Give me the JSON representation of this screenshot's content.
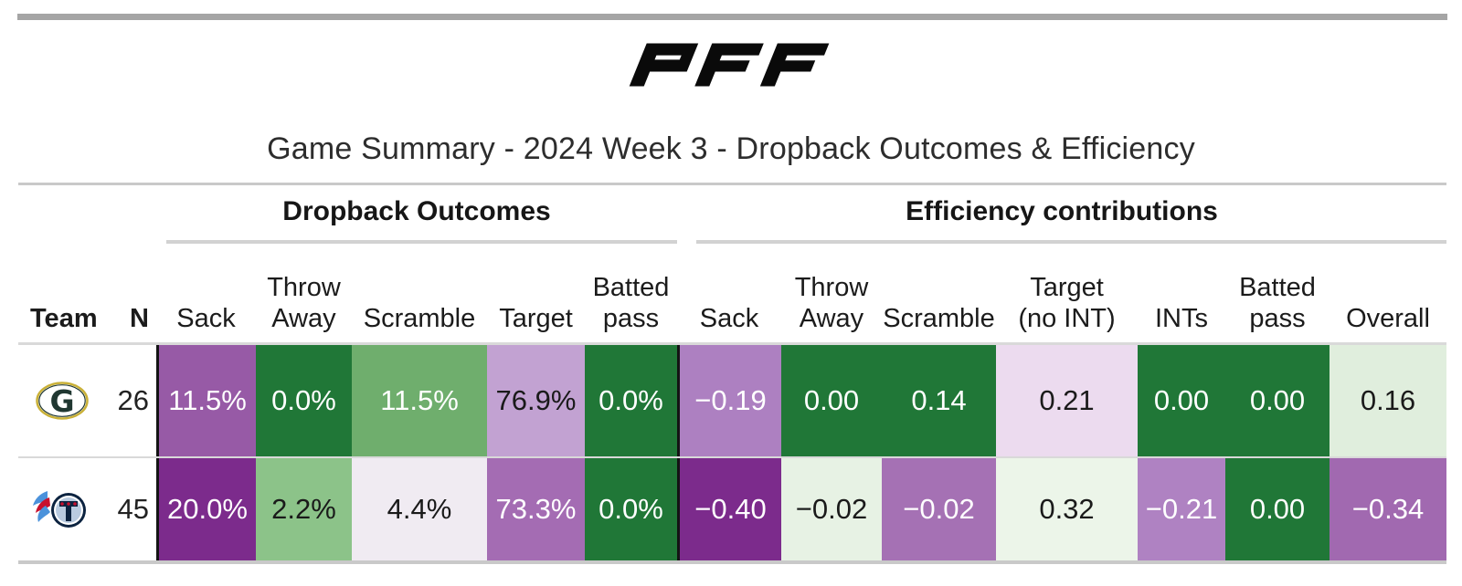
{
  "page": {
    "logo": "PFF",
    "title": "Game Summary - 2024 Week 3 - Dropback Outcomes & Efficiency"
  },
  "table": {
    "groups": [
      {
        "label": "Dropback Outcomes"
      },
      {
        "label": "Efficiency contributions"
      }
    ],
    "columns": [
      {
        "key": "team",
        "label": "Team"
      },
      {
        "key": "n",
        "label": "N"
      },
      {
        "key": "do-sack",
        "label": "Sack"
      },
      {
        "key": "do-throw-away",
        "label": "Throw\nAway"
      },
      {
        "key": "do-scramble",
        "label": "Scramble"
      },
      {
        "key": "do-target",
        "label": "Target"
      },
      {
        "key": "do-batted-pass",
        "label": "Batted\npass"
      },
      {
        "key": "ec-sack",
        "label": "Sack"
      },
      {
        "key": "ec-throw-away",
        "label": "Throw\nAway"
      },
      {
        "key": "ec-scramble",
        "label": "Scramble"
      },
      {
        "key": "ec-target-no-int",
        "label": "Target\n(no INT)"
      },
      {
        "key": "ec-ints",
        "label": "INTs"
      },
      {
        "key": "ec-batted-pass",
        "label": "Batted\npass"
      },
      {
        "key": "ec-overall",
        "label": "Overall"
      }
    ],
    "rows": [
      {
        "team": "packers",
        "team_name": "Green Bay Packers",
        "n": "26",
        "cells": [
          {
            "v": "11.5%",
            "bg": "#975aa6",
            "fg": "#ffffff"
          },
          {
            "v": "0.0%",
            "bg": "#207737",
            "fg": "#ffffff"
          },
          {
            "v": "11.5%",
            "bg": "#6fae6d",
            "fg": "#ffffff"
          },
          {
            "v": "76.9%",
            "bg": "#c2a2d2",
            "fg": "#1a1a1a"
          },
          {
            "v": "0.0%",
            "bg": "#207737",
            "fg": "#ffffff"
          },
          {
            "v": "−0.19",
            "bg": "#ad80c1",
            "fg": "#ffffff"
          },
          {
            "v": "0.00",
            "bg": "#207737",
            "fg": "#ffffff"
          },
          {
            "v": "0.14",
            "bg": "#207737",
            "fg": "#ffffff"
          },
          {
            "v": "0.21",
            "bg": "#ecdbef",
            "fg": "#1a1a1a"
          },
          {
            "v": "0.00",
            "bg": "#207737",
            "fg": "#ffffff"
          },
          {
            "v": "0.00",
            "bg": "#207737",
            "fg": "#ffffff"
          },
          {
            "v": "0.16",
            "bg": "#e0eedd",
            "fg": "#1a1a1a"
          }
        ]
      },
      {
        "team": "titans",
        "team_name": "Tennessee Titans",
        "n": "45",
        "cells": [
          {
            "v": "20.0%",
            "bg": "#7c2b8c",
            "fg": "#ffffff"
          },
          {
            "v": "2.2%",
            "bg": "#8cc389",
            "fg": "#1a1a1a"
          },
          {
            "v": "4.4%",
            "bg": "#f0ebf2",
            "fg": "#1a1a1a"
          },
          {
            "v": "73.3%",
            "bg": "#a46cb3",
            "fg": "#ffffff"
          },
          {
            "v": "0.0%",
            "bg": "#207737",
            "fg": "#ffffff"
          },
          {
            "v": "−0.40",
            "bg": "#7c2b8c",
            "fg": "#ffffff"
          },
          {
            "v": "−0.02",
            "bg": "#e7f2e4",
            "fg": "#1a1a1a"
          },
          {
            "v": "−0.02",
            "bg": "#a571b4",
            "fg": "#ffffff"
          },
          {
            "v": "0.32",
            "bg": "#ecf5e9",
            "fg": "#1a1a1a"
          },
          {
            "v": "−0.21",
            "bg": "#af82c2",
            "fg": "#ffffff"
          },
          {
            "v": "0.00",
            "bg": "#207737",
            "fg": "#ffffff"
          },
          {
            "v": "−0.34",
            "bg": "#a169b0",
            "fg": "#ffffff"
          }
        ]
      }
    ]
  },
  "chart_data": {
    "type": "table",
    "title": "Game Summary - 2024 Week 3 - Dropback Outcomes & Efficiency",
    "column_groups": [
      {
        "label": "Dropback Outcomes",
        "columns": [
          "Sack",
          "Throw Away",
          "Scramble",
          "Target",
          "Batted pass"
        ]
      },
      {
        "label": "Efficiency contributions",
        "columns": [
          "Sack",
          "Throw Away",
          "Scramble",
          "Target (no INT)",
          "INTs",
          "Batted pass",
          "Overall"
        ]
      }
    ],
    "rows": [
      {
        "team": "Green Bay Packers",
        "n": 26,
        "dropback_outcomes": {
          "sack_pct": 11.5,
          "throw_away_pct": 0.0,
          "scramble_pct": 11.5,
          "target_pct": 76.9,
          "batted_pass_pct": 0.0
        },
        "efficiency_contributions": {
          "sack": -0.19,
          "throw_away": 0.0,
          "scramble": 0.14,
          "target_no_int": 0.21,
          "ints": 0.0,
          "batted_pass": 0.0,
          "overall": 0.16
        }
      },
      {
        "team": "Tennessee Titans",
        "n": 45,
        "dropback_outcomes": {
          "sack_pct": 20.0,
          "throw_away_pct": 2.2,
          "scramble_pct": 4.4,
          "target_pct": 73.3,
          "batted_pass_pct": 0.0
        },
        "efficiency_contributions": {
          "sack": -0.4,
          "throw_away": -0.02,
          "scramble": -0.02,
          "target_no_int": 0.32,
          "ints": -0.21,
          "batted_pass": 0.0,
          "overall": -0.34
        }
      }
    ],
    "legend": "cell background encodes value on purple (bad) to green (good) diverging scale",
    "colors": {
      "positive_strong": "#207737",
      "negative_strong": "#7c2b8c",
      "neutral": "#f0ebf2"
    }
  }
}
